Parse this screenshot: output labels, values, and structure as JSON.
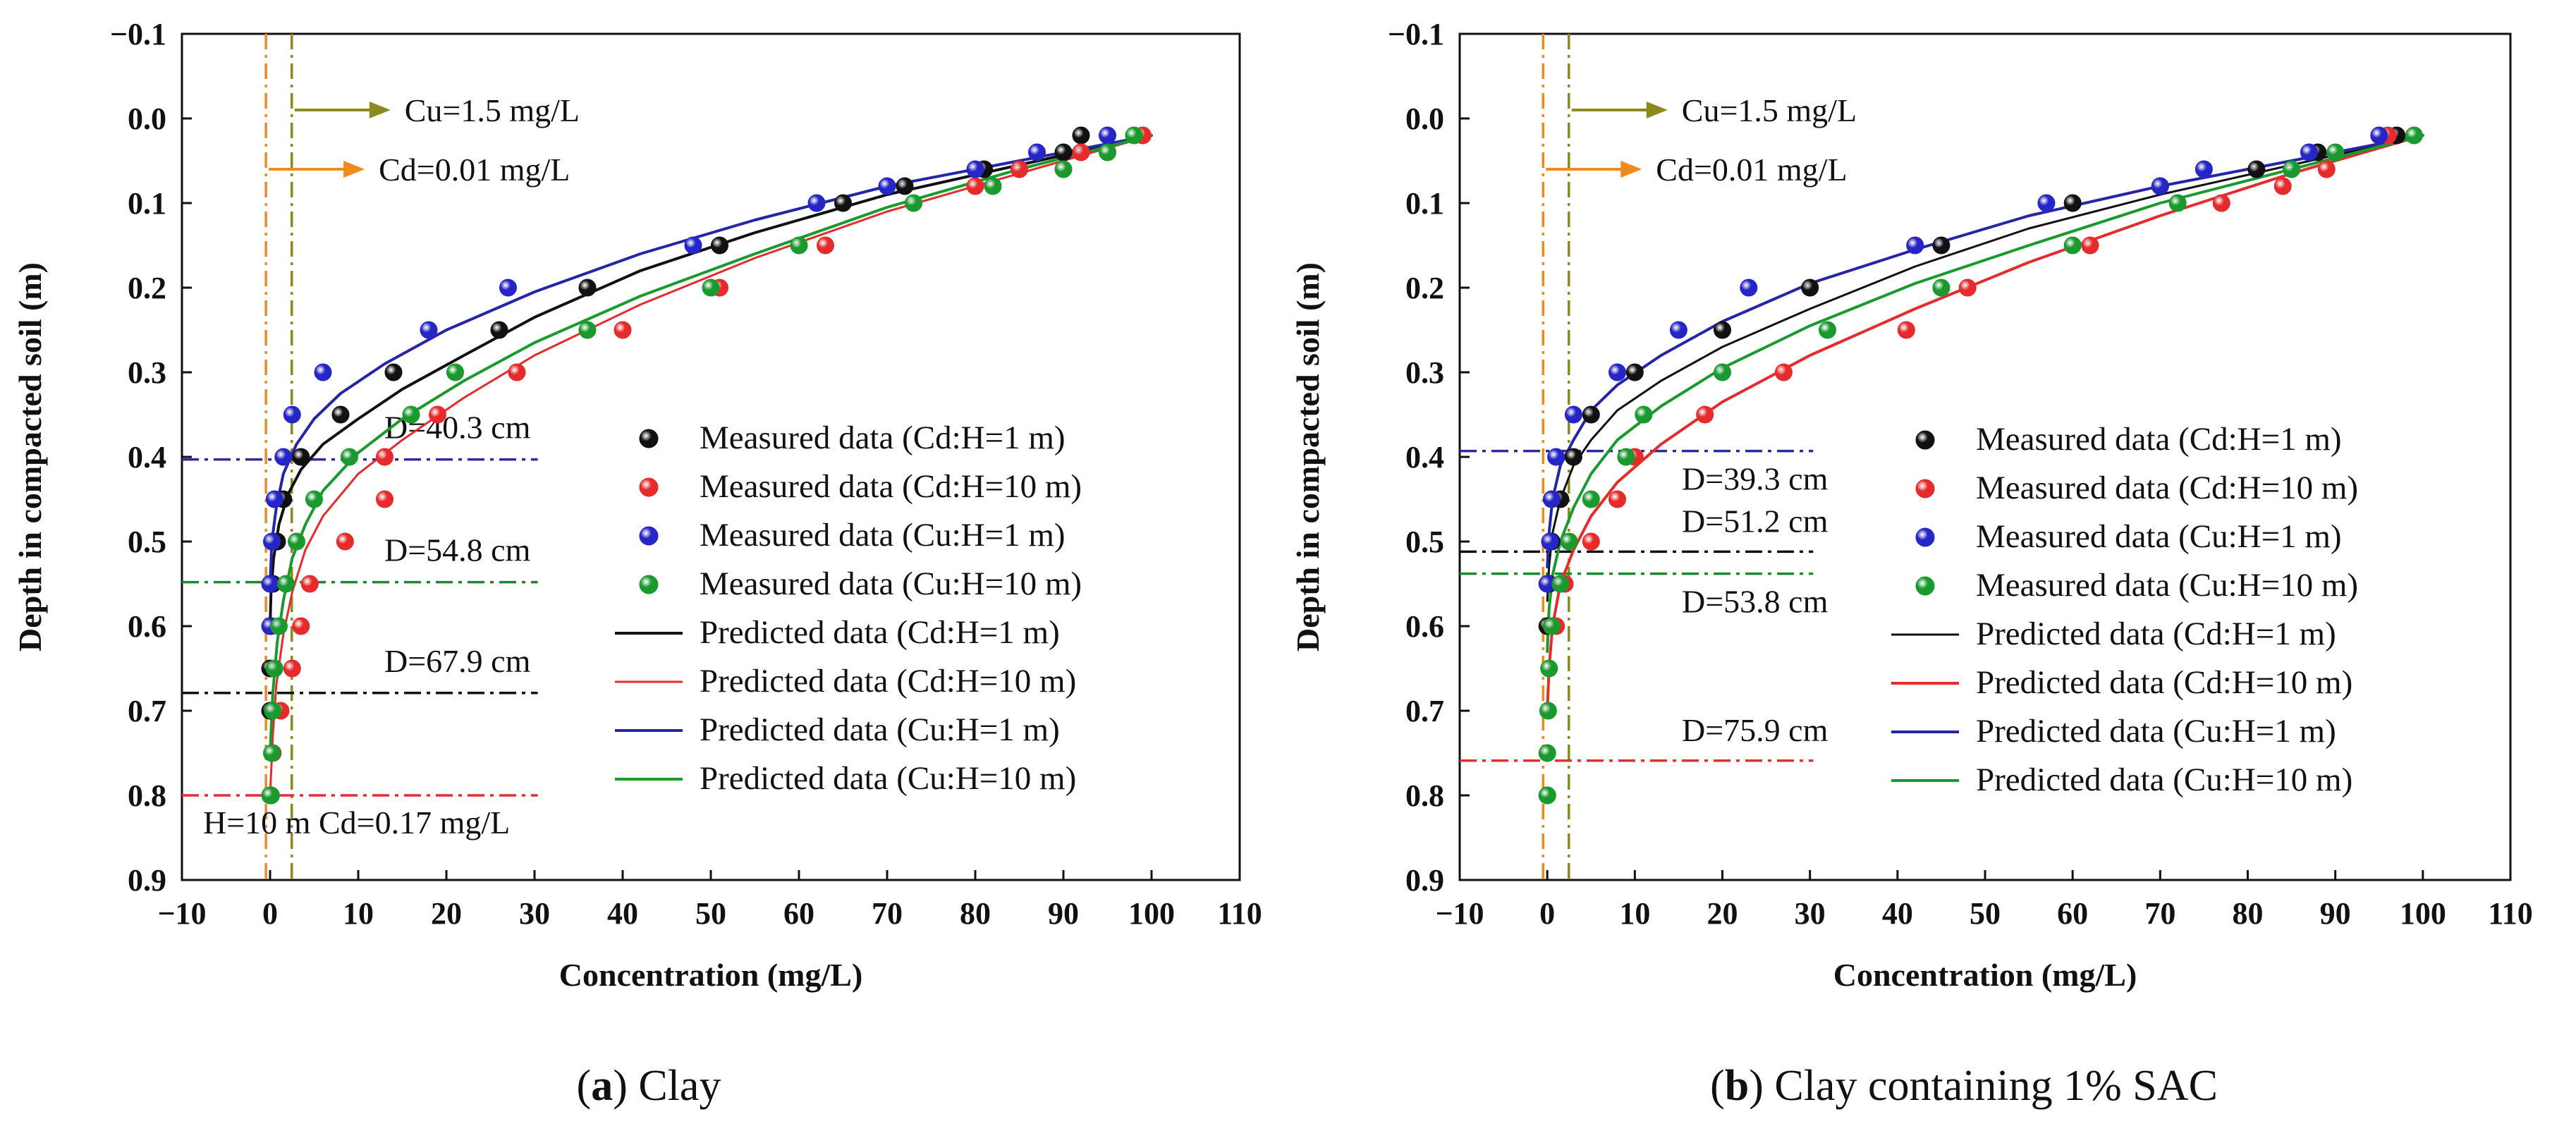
{
  "chart_data": [
    {
      "type": "scatter",
      "caption_prefix": "(",
      "caption_letter": "a",
      "caption_suffix": ") Clay",
      "xlabel": "Concentration (mg/L)",
      "ylabel": "Depth in compacted soil (m)",
      "xlim": [
        -10,
        110
      ],
      "ylim": [
        -0.1,
        0.9
      ],
      "y_inverted": true,
      "x_ticks": [
        "−10",
        "0",
        "10",
        "20",
        "30",
        "40",
        "50",
        "60",
        "70",
        "80",
        "90",
        "100",
        "110"
      ],
      "y_ticks": [
        "−0.1",
        "0.0",
        "0.1",
        "0.2",
        "0.3",
        "0.4",
        "0.5",
        "0.6",
        "0.7",
        "0.8",
        "0.9"
      ],
      "grid": false,
      "legend_position": "bottom-right",
      "limit_lines": [
        {
          "label": "Cu=1.5 mg/L",
          "x": 1.5,
          "color": "#8a8a1e"
        },
        {
          "label": "Cd=0.01 mg/L",
          "x": 0.01,
          "color": "#f08a1c"
        }
      ],
      "depth_lines": [
        {
          "label": "D=40.3 cm",
          "depth": 0.403,
          "color": "#2b2b9c"
        },
        {
          "label": "D=54.8 cm",
          "depth": 0.548,
          "color": "#1a8a2a"
        },
        {
          "label": "D=67.9 cm",
          "depth": 0.679,
          "color": "#111111"
        },
        {
          "label": "",
          "depth": 0.8,
          "color": "#e03030"
        }
      ],
      "note": "H=10 m Cd=0.17 mg/L",
      "series": [
        {
          "name": "Measured data (Cd:H=1 m)",
          "kind": "measured",
          "color": "#111111",
          "x": [
            92,
            90,
            81,
            72,
            65,
            51,
            36,
            26,
            14,
            8,
            3.5,
            1.5,
            0.8,
            0.3,
            0.1,
            0,
            0
          ],
          "y": [
            0.02,
            0.04,
            0.06,
            0.08,
            0.1,
            0.15,
            0.2,
            0.25,
            0.3,
            0.35,
            0.4,
            0.45,
            0.5,
            0.55,
            0.6,
            0.65,
            0.7
          ]
        },
        {
          "name": "Measured data (Cd:H=10 m)",
          "kind": "measured",
          "color": "#e52b2b",
          "x": [
            99,
            92,
            85,
            80,
            63,
            51,
            40,
            28,
            19,
            13,
            13,
            8.5,
            4.5,
            3.5,
            2.5,
            1.2,
            0.3,
            0.1
          ],
          "y": [
            0.02,
            0.04,
            0.06,
            0.08,
            0.15,
            0.2,
            0.25,
            0.3,
            0.35,
            0.4,
            0.45,
            0.5,
            0.55,
            0.6,
            0.65,
            0.7,
            0.75,
            0.8
          ]
        },
        {
          "name": "Measured data (Cu:H=1 m)",
          "kind": "measured",
          "color": "#2525c8",
          "x": [
            95,
            87,
            80,
            70,
            62,
            48,
            27,
            18,
            6,
            2.5,
            1.5,
            0.5,
            0.2,
            0,
            0
          ],
          "y": [
            0.02,
            0.04,
            0.06,
            0.08,
            0.1,
            0.15,
            0.2,
            0.25,
            0.3,
            0.35,
            0.4,
            0.45,
            0.5,
            0.55,
            0.6
          ]
        },
        {
          "name": "Measured data (Cu:H=10 m)",
          "kind": "measured",
          "color": "#1a9a2e",
          "x": [
            98,
            95,
            90,
            82,
            73,
            60,
            50,
            36,
            21,
            16,
            9,
            5,
            3,
            1.8,
            1,
            0.5,
            0.3,
            0.2,
            0.1,
            0
          ],
          "y": [
            0.02,
            0.04,
            0.06,
            0.08,
            0.1,
            0.15,
            0.2,
            0.25,
            0.3,
            0.35,
            0.4,
            0.45,
            0.5,
            0.55,
            0.6,
            0.65,
            0.7,
            0.75,
            0.8,
            0.8
          ]
        },
        {
          "name": "Predicted data (Cd:H=1 m)",
          "kind": "predicted",
          "color": "#111111",
          "width": 4,
          "x": [
            100,
            85,
            70,
            55,
            42,
            30,
            22,
            15,
            10,
            6,
            3.5,
            2,
            1,
            0.4,
            0.1,
            0
          ],
          "y": [
            0.02,
            0.055,
            0.09,
            0.135,
            0.18,
            0.235,
            0.28,
            0.32,
            0.355,
            0.385,
            0.415,
            0.445,
            0.48,
            0.52,
            0.56,
            0.6
          ]
        },
        {
          "name": "Predicted data (Cd:H=10 m)",
          "kind": "predicted",
          "color": "#e52b2b",
          "width": 3,
          "x": [
            100,
            85,
            70,
            55,
            42,
            30,
            22,
            15,
            10,
            6,
            4,
            2.5,
            1.5,
            0.7,
            0.3,
            0
          ],
          "y": [
            0.02,
            0.065,
            0.11,
            0.165,
            0.22,
            0.28,
            0.33,
            0.38,
            0.42,
            0.47,
            0.51,
            0.56,
            0.61,
            0.67,
            0.73,
            0.8
          ]
        },
        {
          "name": "Predicted data (Cu:H=1 m)",
          "kind": "predicted",
          "color": "#2525a8",
          "width": 4,
          "x": [
            100,
            85,
            70,
            55,
            42,
            30,
            20,
            13,
            8,
            5,
            3,
            1.5,
            0.7,
            0.2,
            0
          ],
          "y": [
            0.02,
            0.05,
            0.08,
            0.12,
            0.16,
            0.205,
            0.25,
            0.29,
            0.325,
            0.355,
            0.385,
            0.42,
            0.46,
            0.5,
            0.55
          ]
        },
        {
          "name": "Predicted data (Cu:H=10 m)",
          "kind": "predicted",
          "color": "#1a9a2e",
          "width": 4,
          "x": [
            100,
            85,
            70,
            55,
            42,
            30,
            22,
            15,
            10,
            6,
            4,
            2.5,
            1.5,
            0.8,
            0.3,
            0
          ],
          "y": [
            0.02,
            0.06,
            0.105,
            0.16,
            0.21,
            0.265,
            0.31,
            0.355,
            0.395,
            0.44,
            0.48,
            0.52,
            0.57,
            0.62,
            0.68,
            0.75
          ]
        }
      ]
    },
    {
      "type": "scatter",
      "caption_prefix": "(",
      "caption_letter": "b",
      "caption_suffix": ") Clay containing 1% SAC",
      "xlabel": "Concentration (mg/L)",
      "ylabel": "Depth in compacted soil (m)",
      "xlim": [
        -10,
        110
      ],
      "ylim": [
        -0.1,
        0.9
      ],
      "y_inverted": true,
      "x_ticks": [
        "−10",
        "0",
        "10",
        "20",
        "30",
        "40",
        "50",
        "60",
        "70",
        "80",
        "90",
        "100",
        "110"
      ],
      "y_ticks": [
        "−0.1",
        "0.0",
        "0.1",
        "0.2",
        "0.3",
        "0.4",
        "0.5",
        "0.6",
        "0.7",
        "0.8",
        "0.9"
      ],
      "grid": false,
      "legend_position": "bottom-right",
      "limit_lines": [
        {
          "label": "Cu=1.5 mg/L",
          "x": 1.5,
          "color": "#8a8a1e"
        },
        {
          "label": "Cd=0.01 mg/L",
          "x": 0.01,
          "color": "#f08a1c"
        }
      ],
      "depth_lines": [
        {
          "label": "D=39.3 cm",
          "depth": 0.393,
          "color": "#2b2b9c"
        },
        {
          "label": "D=51.2 cm",
          "depth": 0.512,
          "color": "#111111"
        },
        {
          "label": "D=53.8 cm",
          "depth": 0.538,
          "color": "#1a8a2a"
        },
        {
          "label": "D=75.9 cm",
          "depth": 0.759,
          "color": "#e03030"
        }
      ],
      "note": "",
      "series": [
        {
          "name": "Measured data (Cd:H=1 m)",
          "kind": "measured",
          "color": "#111111",
          "x": [
            97,
            88,
            81,
            70,
            60,
            45,
            30,
            20,
            10,
            5,
            3,
            1.5,
            0.5,
            0.2,
            0
          ],
          "y": [
            0.02,
            0.04,
            0.06,
            0.08,
            0.1,
            0.15,
            0.2,
            0.25,
            0.3,
            0.35,
            0.4,
            0.45,
            0.5,
            0.55,
            0.6
          ]
        },
        {
          "name": "Measured data (Cd:H=10 m)",
          "kind": "measured",
          "color": "#e52b2b",
          "x": [
            96,
            89,
            84,
            77,
            62,
            48,
            41,
            27,
            18,
            10,
            8,
            5,
            2,
            1
          ],
          "y": [
            0.02,
            0.06,
            0.08,
            0.1,
            0.15,
            0.2,
            0.25,
            0.3,
            0.35,
            0.4,
            0.45,
            0.5,
            0.55,
            0.6
          ]
        },
        {
          "name": "Measured data (Cu:H=1 m)",
          "kind": "measured",
          "color": "#2525c8",
          "x": [
            95,
            87,
            75,
            70,
            57,
            42,
            23,
            15,
            8,
            3,
            1,
            0.5,
            0.3,
            0
          ],
          "y": [
            0.02,
            0.04,
            0.06,
            0.08,
            0.1,
            0.15,
            0.2,
            0.25,
            0.3,
            0.35,
            0.4,
            0.45,
            0.5,
            0.55
          ]
        },
        {
          "name": "Measured data (Cu:H=10 m)",
          "kind": "measured",
          "color": "#1a9a2e",
          "x": [
            99,
            90,
            85,
            72,
            60,
            45,
            32,
            20,
            11,
            9,
            5,
            2.5,
            1.5,
            0.5,
            0.2,
            0.1,
            0,
            0,
            0
          ],
          "y": [
            0.02,
            0.04,
            0.06,
            0.1,
            0.15,
            0.2,
            0.25,
            0.3,
            0.35,
            0.4,
            0.45,
            0.5,
            0.55,
            0.6,
            0.65,
            0.7,
            0.75,
            0.8,
            0.8
          ]
        },
        {
          "name": "Predicted data (Cd:H=1 m)",
          "kind": "predicted",
          "color": "#111111",
          "width": 3,
          "x": [
            100,
            85,
            70,
            55,
            42,
            30,
            20,
            13,
            8,
            5,
            3,
            1.5,
            0.6,
            0.2,
            0
          ],
          "y": [
            0.02,
            0.055,
            0.09,
            0.13,
            0.175,
            0.225,
            0.27,
            0.31,
            0.345,
            0.38,
            0.41,
            0.45,
            0.49,
            0.53,
            0.57
          ]
        },
        {
          "name": "Predicted data (Cd:H=10 m)",
          "kind": "predicted",
          "color": "#e52b2b",
          "width": 4,
          "x": [
            100,
            85,
            70,
            55,
            42,
            30,
            20,
            13,
            8,
            5,
            3,
            1.5,
            0.6,
            0.2,
            0
          ],
          "y": [
            0.02,
            0.065,
            0.115,
            0.17,
            0.225,
            0.28,
            0.335,
            0.385,
            0.43,
            0.47,
            0.51,
            0.55,
            0.6,
            0.65,
            0.7
          ]
        },
        {
          "name": "Predicted data (Cu:H=1 m)",
          "kind": "predicted",
          "color": "#2525a8",
          "width": 4,
          "x": [
            100,
            85,
            70,
            55,
            42,
            30,
            20,
            13,
            8,
            5,
            3,
            1.5,
            0.6,
            0.2,
            0
          ],
          "y": [
            0.02,
            0.05,
            0.08,
            0.115,
            0.155,
            0.195,
            0.24,
            0.28,
            0.315,
            0.345,
            0.38,
            0.41,
            0.45,
            0.49,
            0.53
          ]
        },
        {
          "name": "Predicted data (Cu:H=10 m)",
          "kind": "predicted",
          "color": "#1a9a2e",
          "width": 4,
          "x": [
            100,
            85,
            70,
            55,
            42,
            30,
            20,
            13,
            8,
            5,
            3,
            1.5,
            0.6,
            0.2,
            0
          ],
          "y": [
            0.02,
            0.06,
            0.1,
            0.15,
            0.195,
            0.245,
            0.295,
            0.34,
            0.38,
            0.42,
            0.46,
            0.5,
            0.54,
            0.58,
            0.63
          ]
        }
      ]
    }
  ]
}
